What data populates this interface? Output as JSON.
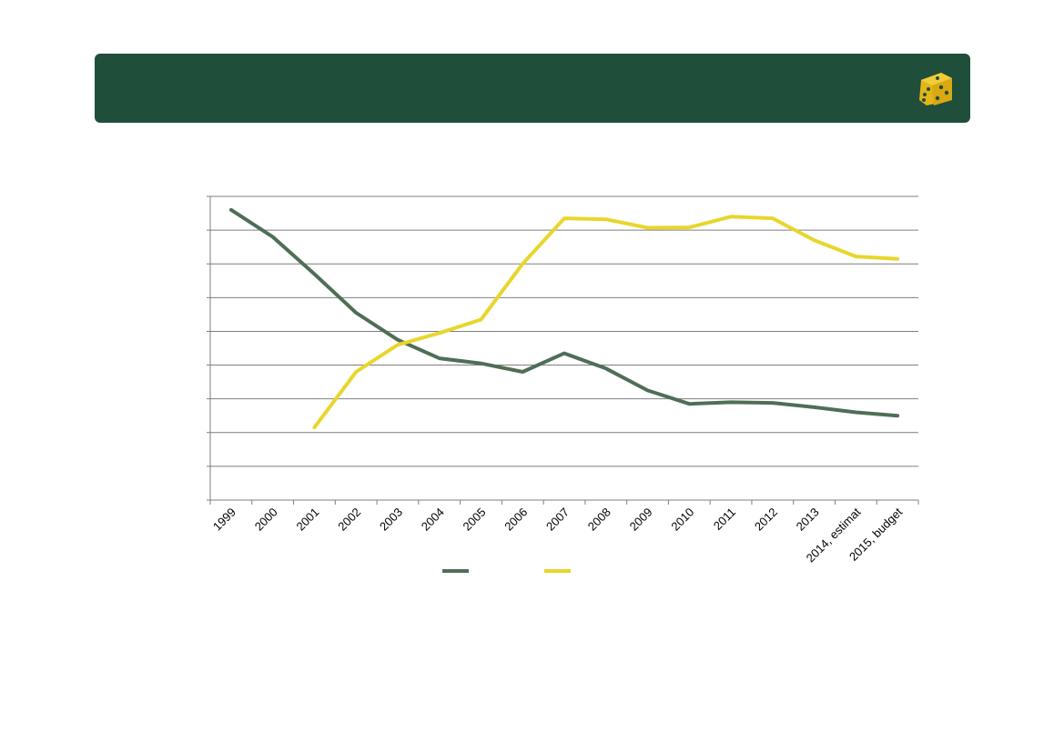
{
  "colors": {
    "header_bg": "#1f4e3a",
    "logo": "#e3b51a",
    "series_1": "#4f6e57",
    "series_2": "#e8d62c",
    "grid": "#7f7f7f"
  },
  "logo_icon": "dice-icon",
  "chart_data": {
    "type": "line",
    "x": [
      "1999",
      "2000",
      "2001",
      "2002",
      "2003",
      "2004",
      "2005",
      "2006",
      "2007",
      "2008",
      "2009",
      "2010",
      "2011",
      "2012",
      "2013",
      "2014, estimat",
      "2015, budget"
    ],
    "series": [
      {
        "values": [
          8.6,
          7.8,
          6.7,
          5.55,
          4.75,
          4.2,
          4.05,
          3.8,
          4.35,
          3.9,
          3.25,
          2.85,
          2.9,
          2.88,
          2.75,
          2.6,
          2.5
        ],
        "color": "#4f6e57"
      },
      {
        "values": [
          null,
          null,
          2.15,
          3.8,
          4.6,
          4.95,
          5.35,
          7.0,
          8.35,
          8.32,
          8.07,
          8.08,
          8.4,
          8.35,
          7.7,
          7.22,
          7.15
        ],
        "color": "#e8d62c"
      }
    ],
    "ylim": [
      0,
      9
    ],
    "y_gridlines": [
      0,
      1,
      2,
      3,
      4,
      5,
      6,
      7,
      8,
      9
    ],
    "y_tick_labels_visible": false,
    "grid": true,
    "legend": "bottom-center",
    "title": "",
    "xlabel": "",
    "ylabel": ""
  }
}
